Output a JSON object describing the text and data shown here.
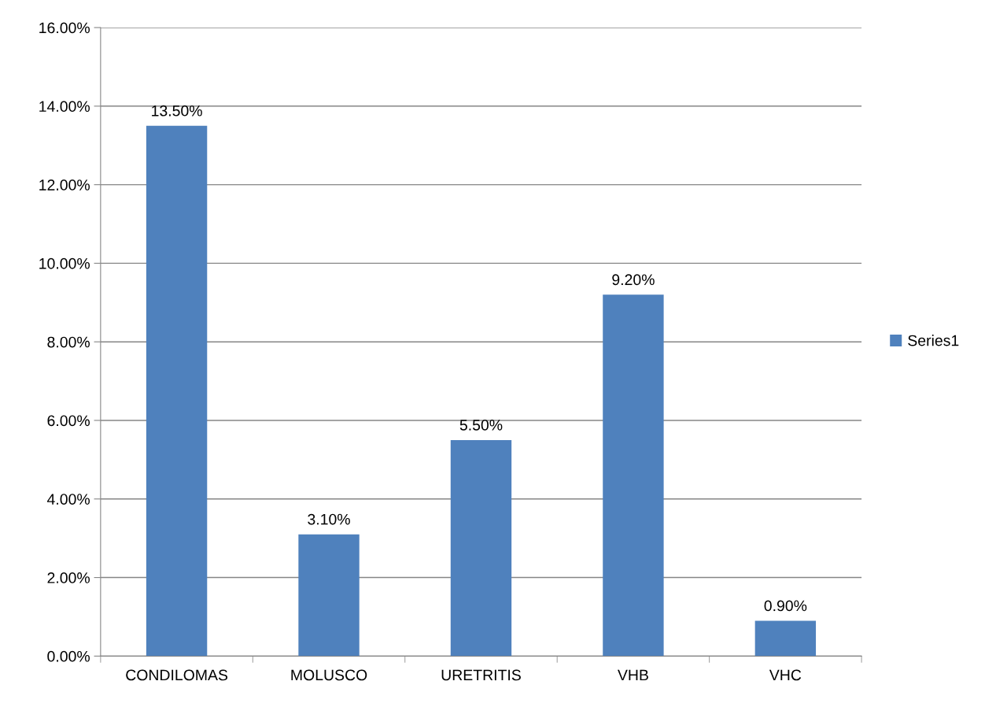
{
  "chart_data": {
    "type": "bar",
    "categories": [
      "CONDILOMAS",
      "MOLUSCO",
      "URETRITIS",
      "VHB",
      "VHC"
    ],
    "series": [
      {
        "name": "Series1",
        "color": "#4f81bd",
        "values": [
          13.5,
          3.1,
          5.5,
          9.2,
          0.9
        ],
        "value_labels": [
          "13.50%",
          "3.10%",
          "5.50%",
          "9.20%",
          "0.90%"
        ]
      }
    ],
    "ylim": [
      0,
      16
    ],
    "yticks": [
      {
        "value": 0,
        "label": "0.00%"
      },
      {
        "value": 2,
        "label": "2.00%"
      },
      {
        "value": 4,
        "label": "4.00%"
      },
      {
        "value": 6,
        "label": "6.00%"
      },
      {
        "value": 8,
        "label": "8.00%"
      },
      {
        "value": 10,
        "label": "10.00%"
      },
      {
        "value": 12,
        "label": "12.00%"
      },
      {
        "value": 14,
        "label": "14.00%"
      },
      {
        "value": 16,
        "label": "16.00%"
      }
    ],
    "grid": "y",
    "legend": "right"
  }
}
